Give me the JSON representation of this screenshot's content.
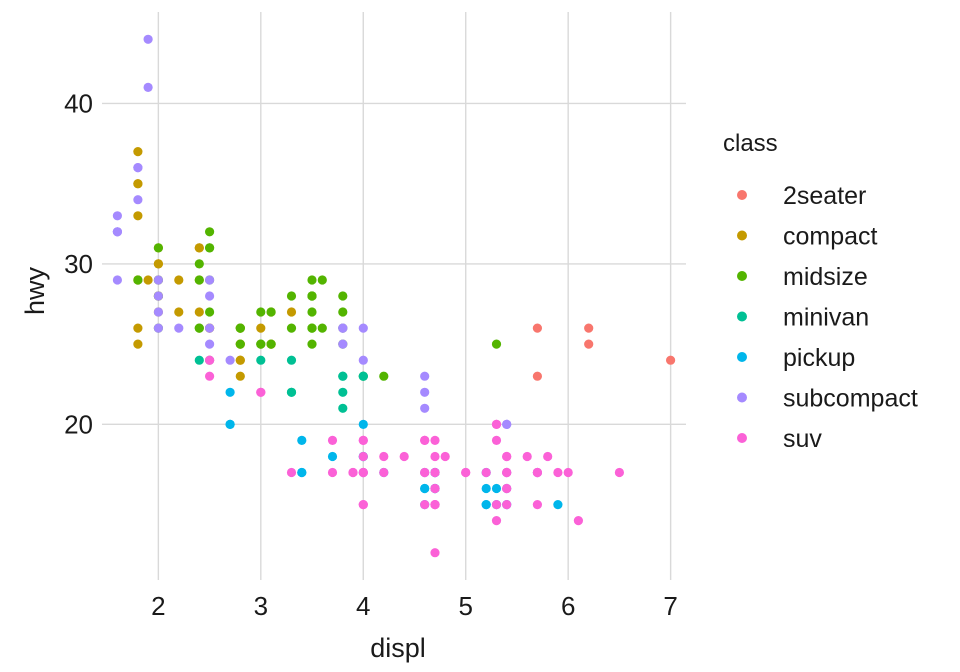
{
  "chart_data": {
    "type": "scatter",
    "xlabel": "displ",
    "ylabel": "hwy",
    "xlim": [
      1.45,
      7.15
    ],
    "ylim": [
      10.3,
      45.7
    ],
    "x_ticks": [
      2,
      3,
      4,
      5,
      6,
      7
    ],
    "y_ticks": [
      20,
      30,
      40
    ],
    "grid": true,
    "legend_title": "class",
    "legend_placement": "right",
    "series": [
      {
        "name": "2seater",
        "color": "#F8766D",
        "points": [
          [
            5.7,
            26
          ],
          [
            5.7,
            23
          ],
          [
            6.2,
            26
          ],
          [
            6.2,
            25
          ],
          [
            7.0,
            24
          ]
        ]
      },
      {
        "name": "compact",
        "color": "#C49A00",
        "points": [
          [
            1.8,
            29
          ],
          [
            1.8,
            29
          ],
          [
            2.0,
            31
          ],
          [
            2.0,
            30
          ],
          [
            2.8,
            26
          ],
          [
            2.8,
            26
          ],
          [
            3.1,
            27
          ],
          [
            1.8,
            26
          ],
          [
            1.8,
            25
          ],
          [
            2.0,
            28
          ],
          [
            2.0,
            27
          ],
          [
            2.8,
            25
          ],
          [
            2.8,
            25
          ],
          [
            3.1,
            25
          ],
          [
            3.1,
            25
          ],
          [
            2.2,
            27
          ],
          [
            2.2,
            29
          ],
          [
            2.4,
            31
          ],
          [
            2.4,
            31
          ],
          [
            3.0,
            26
          ],
          [
            3.3,
            27
          ],
          [
            1.8,
            37
          ],
          [
            1.8,
            35
          ],
          [
            1.8,
            35
          ],
          [
            1.8,
            33
          ],
          [
            2.4,
            29
          ],
          [
            2.4,
            27
          ],
          [
            2.5,
            26
          ],
          [
            2.5,
            24
          ],
          [
            2.5,
            26
          ],
          [
            2.8,
            23
          ],
          [
            2.8,
            24
          ],
          [
            2.8,
            24
          ],
          [
            2.0,
            30
          ],
          [
            2.0,
            29
          ],
          [
            2.0,
            28
          ],
          [
            1.9,
            29
          ]
        ]
      },
      {
        "name": "midsize",
        "color": "#53B400",
        "points": [
          [
            2.4,
            30
          ],
          [
            2.4,
            26
          ],
          [
            2.4,
            29
          ],
          [
            2.4,
            26
          ],
          [
            3.0,
            25
          ],
          [
            3.0,
            25
          ],
          [
            3.1,
            25
          ],
          [
            3.5,
            26
          ],
          [
            3.5,
            28
          ],
          [
            3.5,
            26
          ],
          [
            3.6,
            29
          ],
          [
            3.8,
            28
          ],
          [
            3.8,
            26
          ],
          [
            3.8,
            25
          ],
          [
            2.5,
            32
          ],
          [
            2.5,
            31
          ],
          [
            2.5,
            29
          ],
          [
            2.5,
            31
          ],
          [
            2.5,
            27
          ],
          [
            2.8,
            26
          ],
          [
            2.8,
            25
          ],
          [
            3.3,
            28
          ],
          [
            3.5,
            28
          ],
          [
            3.5,
            27
          ],
          [
            4.2,
            23
          ],
          [
            1.8,
            29
          ],
          [
            2.0,
            31
          ],
          [
            2.0,
            29
          ],
          [
            2.0,
            26
          ],
          [
            2.8,
            26
          ],
          [
            3.1,
            27
          ],
          [
            3.3,
            26
          ],
          [
            3.5,
            28
          ],
          [
            3.5,
            29
          ],
          [
            3.5,
            25
          ],
          [
            3.8,
            27
          ],
          [
            4.0,
            23
          ],
          [
            5.3,
            25
          ],
          [
            3.6,
            26
          ],
          [
            2.0,
            28
          ],
          [
            3.0,
            27
          ]
        ]
      },
      {
        "name": "minivan",
        "color": "#00C094",
        "points": [
          [
            2.4,
            24
          ],
          [
            3.0,
            24
          ],
          [
            3.3,
            22
          ],
          [
            3.3,
            22
          ],
          [
            3.3,
            24
          ],
          [
            3.8,
            23
          ],
          [
            3.8,
            23
          ],
          [
            3.8,
            21
          ],
          [
            3.8,
            22
          ],
          [
            4.0,
            23
          ],
          [
            4.0,
            23
          ]
        ]
      },
      {
        "name": "pickup",
        "color": "#00B6EB",
        "points": [
          [
            3.4,
            17
          ],
          [
            3.4,
            19
          ],
          [
            3.7,
            18
          ],
          [
            4.0,
            18
          ],
          [
            4.0,
            20
          ],
          [
            4.2,
            17
          ],
          [
            4.7,
            16
          ],
          [
            4.7,
            17
          ],
          [
            4.7,
            17
          ],
          [
            4.7,
            16
          ],
          [
            5.2,
            15
          ],
          [
            5.2,
            17
          ],
          [
            5.2,
            16
          ],
          [
            5.2,
            15
          ],
          [
            5.7,
            17
          ],
          [
            5.9,
            15
          ],
          [
            2.7,
            22
          ],
          [
            2.7,
            20
          ],
          [
            2.7,
            20
          ],
          [
            4.6,
            17
          ],
          [
            4.6,
            16
          ],
          [
            4.7,
            16
          ],
          [
            5.4,
            17
          ],
          [
            5.4,
            15
          ],
          [
            3.4,
            17
          ],
          [
            5.3,
            16
          ],
          [
            5.3,
            15
          ],
          [
            4.7,
            17
          ],
          [
            5.4,
            16
          ],
          [
            4.0,
            18
          ],
          [
            4.0,
            17
          ],
          [
            4.6,
            15
          ],
          [
            4.6,
            16
          ]
        ]
      },
      {
        "name": "subcompact",
        "color": "#A58AFF",
        "points": [
          [
            1.6,
            33
          ],
          [
            1.6,
            32
          ],
          [
            1.6,
            32
          ],
          [
            1.6,
            29
          ],
          [
            1.6,
            32
          ],
          [
            1.8,
            34
          ],
          [
            1.8,
            36
          ],
          [
            1.8,
            36
          ],
          [
            2.0,
            29
          ],
          [
            1.9,
            44
          ],
          [
            1.9,
            41
          ],
          [
            2.0,
            27
          ],
          [
            2.0,
            26
          ],
          [
            2.0,
            28
          ],
          [
            2.5,
            24
          ],
          [
            2.5,
            28
          ],
          [
            2.2,
            26
          ],
          [
            2.5,
            26
          ],
          [
            2.5,
            29
          ],
          [
            2.5,
            25
          ],
          [
            2.7,
            24
          ],
          [
            3.8,
            26
          ],
          [
            4.0,
            26
          ],
          [
            3.8,
            25
          ],
          [
            4.0,
            24
          ],
          [
            4.6,
            23
          ],
          [
            4.6,
            22
          ],
          [
            4.6,
            21
          ],
          [
            5.4,
            20
          ],
          [
            5.4,
            20
          ],
          [
            3.8,
            26
          ]
        ]
      },
      {
        "name": "suv",
        "color": "#FB61D7",
        "points": [
          [
            5.3,
            20
          ],
          [
            5.3,
            15
          ],
          [
            5.3,
            20
          ],
          [
            5.7,
            17
          ],
          [
            6.0,
            17
          ],
          [
            5.7,
            17
          ],
          [
            5.3,
            14
          ],
          [
            6.5,
            17
          ],
          [
            4.0,
            15
          ],
          [
            4.0,
            19
          ],
          [
            4.0,
            17
          ],
          [
            4.7,
            16
          ],
          [
            4.7,
            12
          ],
          [
            4.7,
            17
          ],
          [
            4.7,
            19
          ],
          [
            5.2,
            17
          ],
          [
            5.7,
            17
          ],
          [
            5.9,
            17
          ],
          [
            4.7,
            15
          ],
          [
            4.7,
            15
          ],
          [
            4.7,
            16
          ],
          [
            4.7,
            18
          ],
          [
            5.7,
            15
          ],
          [
            6.1,
            14
          ],
          [
            4.0,
            17
          ],
          [
            4.2,
            17
          ],
          [
            4.4,
            18
          ],
          [
            4.6,
            19
          ],
          [
            5.4,
            16
          ],
          [
            5.4,
            17
          ],
          [
            5.4,
            17
          ],
          [
            4.0,
            18
          ],
          [
            4.0,
            19
          ],
          [
            4.6,
            15
          ],
          [
            5.0,
            17
          ],
          [
            4.2,
            18
          ],
          [
            3.7,
            19
          ],
          [
            3.9,
            17
          ],
          [
            2.5,
            23
          ],
          [
            2.5,
            24
          ],
          [
            3.0,
            22
          ],
          [
            3.3,
            17
          ],
          [
            3.7,
            17
          ],
          [
            3.9,
            17
          ],
          [
            4.6,
            19
          ],
          [
            5.4,
            18
          ],
          [
            5.6,
            18
          ],
          [
            5.4,
            18
          ],
          [
            4.6,
            17
          ],
          [
            5.0,
            17
          ],
          [
            3.0,
            22
          ],
          [
            4.0,
            15
          ],
          [
            4.0,
            17
          ],
          [
            4.7,
            15
          ],
          [
            5.4,
            17
          ],
          [
            5.8,
            18
          ],
          [
            4.6,
            17
          ],
          [
            5.3,
            19
          ],
          [
            5.4,
            15
          ],
          [
            5.4,
            16
          ],
          [
            4.8,
            18
          ],
          [
            4.7,
            17
          ]
        ]
      }
    ]
  }
}
